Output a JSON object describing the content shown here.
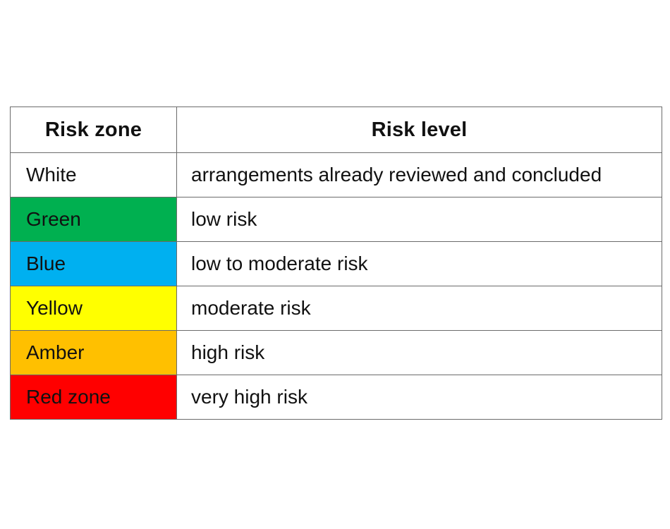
{
  "table": {
    "headers": {
      "zone": "Risk zone",
      "level": "Risk level"
    },
    "rows": [
      {
        "zone": "White",
        "level": "arrangements already reviewed and concluded",
        "color": "#ffffff"
      },
      {
        "zone": "Green",
        "level": "low risk",
        "color": "#00b050"
      },
      {
        "zone": "Blue",
        "level": "low to moderate risk",
        "color": "#00b0f0"
      },
      {
        "zone": "Yellow",
        "level": "moderate risk",
        "color": "#ffff00"
      },
      {
        "zone": "Amber",
        "level": "high risk",
        "color": "#ffc000"
      },
      {
        "zone": "Red zone",
        "level": "very high risk",
        "color": "#ff0000"
      }
    ]
  }
}
